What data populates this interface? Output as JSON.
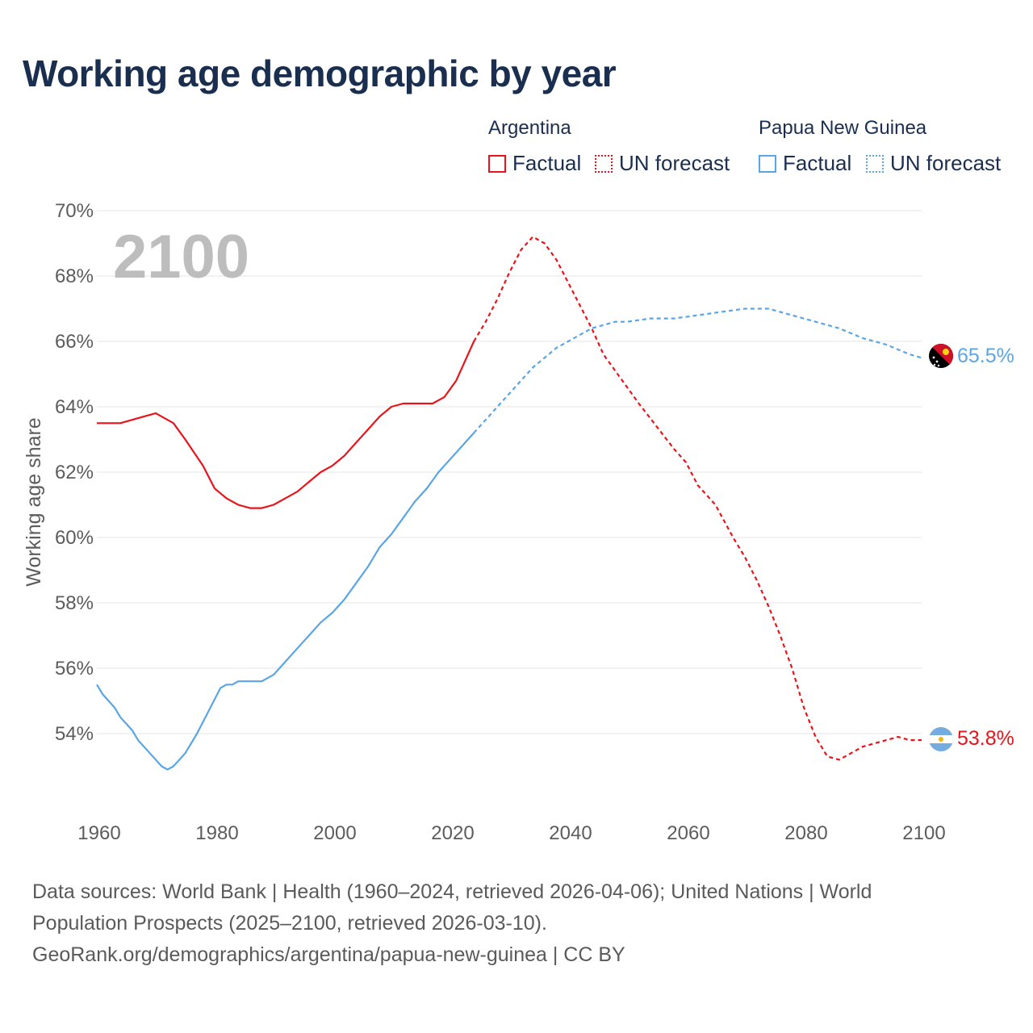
{
  "title": "Working age demographic by year",
  "legend": {
    "groups": [
      {
        "country": "Argentina",
        "factual_label": "Factual",
        "forecast_label": "UN forecast",
        "color": "#e8141b"
      },
      {
        "country": "Papua New Guinea",
        "factual_label": "Factual",
        "forecast_label": "UN forecast",
        "color": "#5aa5e6"
      }
    ]
  },
  "year_badge": "2100",
  "end_labels": {
    "png": "65.5%",
    "argentina": "53.8%"
  },
  "sources": {
    "line1": "Data sources: World Bank | Health (1960–2024, retrieved 2026-04-06); United Nations | World",
    "line2": "Population Prospects (2025–2100, retrieved 2026-03-10).",
    "line3": "GeoRank.org/demographics/argentina/papua-new-guinea | CC BY"
  },
  "chart_data": {
    "type": "line",
    "title": "Working age demographic by year",
    "xlabel": "",
    "ylabel": "Working age share",
    "xlim": [
      1960,
      2100
    ],
    "ylim": [
      52,
      70
    ],
    "x_ticks": [
      1960,
      1980,
      2000,
      2020,
      2040,
      2060,
      2080,
      2100
    ],
    "x_tick_labels": [
      "1960",
      "1980",
      "2000",
      "2020",
      "2040",
      "2060",
      "2080",
      "2100"
    ],
    "y_ticks": [
      54,
      56,
      58,
      60,
      62,
      64,
      66,
      68,
      70
    ],
    "y_tick_labels": [
      "54%",
      "56%",
      "58%",
      "60%",
      "62%",
      "64%",
      "66%",
      "68%",
      "70%"
    ],
    "factual_end_year": 2024,
    "series": [
      {
        "name": "Argentina",
        "color": "#e8141b",
        "points": [
          [
            1960,
            63.5
          ],
          [
            1964,
            63.5
          ],
          [
            1966,
            63.6
          ],
          [
            1968,
            63.7
          ],
          [
            1970,
            63.8
          ],
          [
            1973,
            63.5
          ],
          [
            1975,
            63.0
          ],
          [
            1978,
            62.2
          ],
          [
            1980,
            61.5
          ],
          [
            1982,
            61.2
          ],
          [
            1984,
            61.0
          ],
          [
            1986,
            60.9
          ],
          [
            1988,
            60.9
          ],
          [
            1990,
            61.0
          ],
          [
            1992,
            61.2
          ],
          [
            1994,
            61.4
          ],
          [
            1996,
            61.7
          ],
          [
            1998,
            62.0
          ],
          [
            2000,
            62.2
          ],
          [
            2002,
            62.5
          ],
          [
            2004,
            62.9
          ],
          [
            2006,
            63.3
          ],
          [
            2008,
            63.7
          ],
          [
            2010,
            64.0
          ],
          [
            2012,
            64.1
          ],
          [
            2014,
            64.1
          ],
          [
            2017,
            64.1
          ],
          [
            2019,
            64.3
          ],
          [
            2021,
            64.8
          ],
          [
            2023,
            65.6
          ],
          [
            2024,
            66.0
          ],
          [
            2026,
            66.6
          ],
          [
            2028,
            67.3
          ],
          [
            2030,
            68.1
          ],
          [
            2032,
            68.8
          ],
          [
            2034,
            69.2
          ],
          [
            2036,
            69.0
          ],
          [
            2038,
            68.5
          ],
          [
            2040,
            67.8
          ],
          [
            2042,
            67.1
          ],
          [
            2044,
            66.4
          ],
          [
            2046,
            65.6
          ],
          [
            2048,
            65.1
          ],
          [
            2050,
            64.6
          ],
          [
            2052,
            64.1
          ],
          [
            2055,
            63.4
          ],
          [
            2058,
            62.7
          ],
          [
            2060,
            62.3
          ],
          [
            2062,
            61.6
          ],
          [
            2065,
            61.0
          ],
          [
            2068,
            60.0
          ],
          [
            2070,
            59.4
          ],
          [
            2072,
            58.7
          ],
          [
            2074,
            57.9
          ],
          [
            2076,
            57.0
          ],
          [
            2078,
            56.0
          ],
          [
            2080,
            54.8
          ],
          [
            2082,
            53.9
          ],
          [
            2084,
            53.3
          ],
          [
            2086,
            53.2
          ],
          [
            2088,
            53.4
          ],
          [
            2090,
            53.6
          ],
          [
            2092,
            53.7
          ],
          [
            2094,
            53.8
          ],
          [
            2096,
            53.9
          ],
          [
            2098,
            53.8
          ],
          [
            2100,
            53.8
          ]
        ]
      },
      {
        "name": "Papua New Guinea",
        "color": "#5aa5e6",
        "points": [
          [
            1960,
            55.5
          ],
          [
            1961,
            55.2
          ],
          [
            1963,
            54.8
          ],
          [
            1964,
            54.5
          ],
          [
            1966,
            54.1
          ],
          [
            1967,
            53.8
          ],
          [
            1969,
            53.4
          ],
          [
            1971,
            53.0
          ],
          [
            1972,
            52.9
          ],
          [
            1973,
            53.0
          ],
          [
            1975,
            53.4
          ],
          [
            1977,
            54.0
          ],
          [
            1979,
            54.7
          ],
          [
            1981,
            55.4
          ],
          [
            1982,
            55.5
          ],
          [
            1983,
            55.5
          ],
          [
            1984,
            55.6
          ],
          [
            1986,
            55.6
          ],
          [
            1988,
            55.6
          ],
          [
            1990,
            55.8
          ],
          [
            1992,
            56.2
          ],
          [
            1994,
            56.6
          ],
          [
            1996,
            57.0
          ],
          [
            1998,
            57.4
          ],
          [
            2000,
            57.7
          ],
          [
            2002,
            58.1
          ],
          [
            2004,
            58.6
          ],
          [
            2006,
            59.1
          ],
          [
            2008,
            59.7
          ],
          [
            2010,
            60.1
          ],
          [
            2012,
            60.6
          ],
          [
            2014,
            61.1
          ],
          [
            2016,
            61.5
          ],
          [
            2018,
            62.0
          ],
          [
            2020,
            62.4
          ],
          [
            2022,
            62.8
          ],
          [
            2024,
            63.2
          ],
          [
            2026,
            63.6
          ],
          [
            2028,
            64.0
          ],
          [
            2030,
            64.4
          ],
          [
            2032,
            64.8
          ],
          [
            2034,
            65.2
          ],
          [
            2036,
            65.5
          ],
          [
            2038,
            65.8
          ],
          [
            2040,
            66.0
          ],
          [
            2042,
            66.2
          ],
          [
            2044,
            66.4
          ],
          [
            2046,
            66.5
          ],
          [
            2048,
            66.6
          ],
          [
            2050,
            66.6
          ],
          [
            2054,
            66.7
          ],
          [
            2058,
            66.7
          ],
          [
            2062,
            66.8
          ],
          [
            2066,
            66.9
          ],
          [
            2070,
            67.0
          ],
          [
            2074,
            67.0
          ],
          [
            2078,
            66.8
          ],
          [
            2082,
            66.6
          ],
          [
            2086,
            66.4
          ],
          [
            2090,
            66.1
          ],
          [
            2094,
            65.9
          ],
          [
            2098,
            65.6
          ],
          [
            2100,
            65.5
          ]
        ]
      }
    ]
  }
}
